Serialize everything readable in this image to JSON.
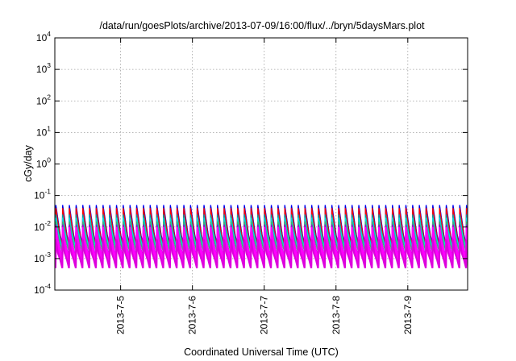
{
  "chart_data": {
    "type": "line",
    "title": "/data/run/goesPlots/archive/2013-07-09/16:00/flux/../bryn/5daysMars.plot",
    "xlabel": "Coordinated Universal Time (UTC)",
    "ylabel": "cGy/day",
    "y_scale": "log",
    "ylim": [
      0.0001,
      10000
    ],
    "y_ticks": [
      {
        "value": 0.0001,
        "base": "10",
        "exp": "-4"
      },
      {
        "value": 0.001,
        "base": "10",
        "exp": "-3"
      },
      {
        "value": 0.01,
        "base": "10",
        "exp": "-2"
      },
      {
        "value": 0.1,
        "base": "10",
        "exp": "-1"
      },
      {
        "value": 1,
        "base": "10",
        "exp": "0"
      },
      {
        "value": 10,
        "base": "10",
        "exp": "1"
      },
      {
        "value": 100,
        "base": "10",
        "exp": "2"
      },
      {
        "value": 1000,
        "base": "10",
        "exp": "3"
      },
      {
        "value": 10000,
        "base": "10",
        "exp": "4"
      }
    ],
    "xlim": [
      "2013-07-04 02:00",
      "2013-07-09 20:00"
    ],
    "x_ticks": [
      {
        "value": "2013-07-05 00:00",
        "label": "2013-7-5"
      },
      {
        "value": "2013-07-06 00:00",
        "label": "2013-7-6"
      },
      {
        "value": "2013-07-07 00:00",
        "label": "2013-7-7"
      },
      {
        "value": "2013-07-08 00:00",
        "label": "2013-7-8"
      },
      {
        "value": "2013-07-09 00:00",
        "label": "2013-7-9"
      }
    ],
    "grid": true,
    "pattern": {
      "description_free": true,
      "period_hours": 2.25,
      "peak_fraction": 0.05,
      "series_levels": [
        {
          "color": "#0000ff",
          "peak": 0.05,
          "trough": 0.003
        },
        {
          "color": "#0000cc",
          "peak": 0.045,
          "trough": 0.0028
        },
        {
          "color": "#ff0000",
          "peak": 0.04,
          "trough": 0.0026
        },
        {
          "color": "#00a0a0",
          "peak": 0.025,
          "trough": 0.0022
        },
        {
          "color": "#00e0e0",
          "peak": 0.02,
          "trough": 0.002
        },
        {
          "color": "#3cb371",
          "peak": 0.015,
          "trough": 0.0016
        },
        {
          "color": "#9400d3",
          "peak": 0.012,
          "trough": 0.0011
        },
        {
          "color": "#ff00ff",
          "peak": 0.01,
          "trough": 0.0009
        },
        {
          "color": "#ff00ff",
          "peak": 0.007,
          "trough": 0.0006
        },
        {
          "color": "#dd00dd",
          "peak": 0.004,
          "trough": 0.0005
        }
      ]
    }
  }
}
